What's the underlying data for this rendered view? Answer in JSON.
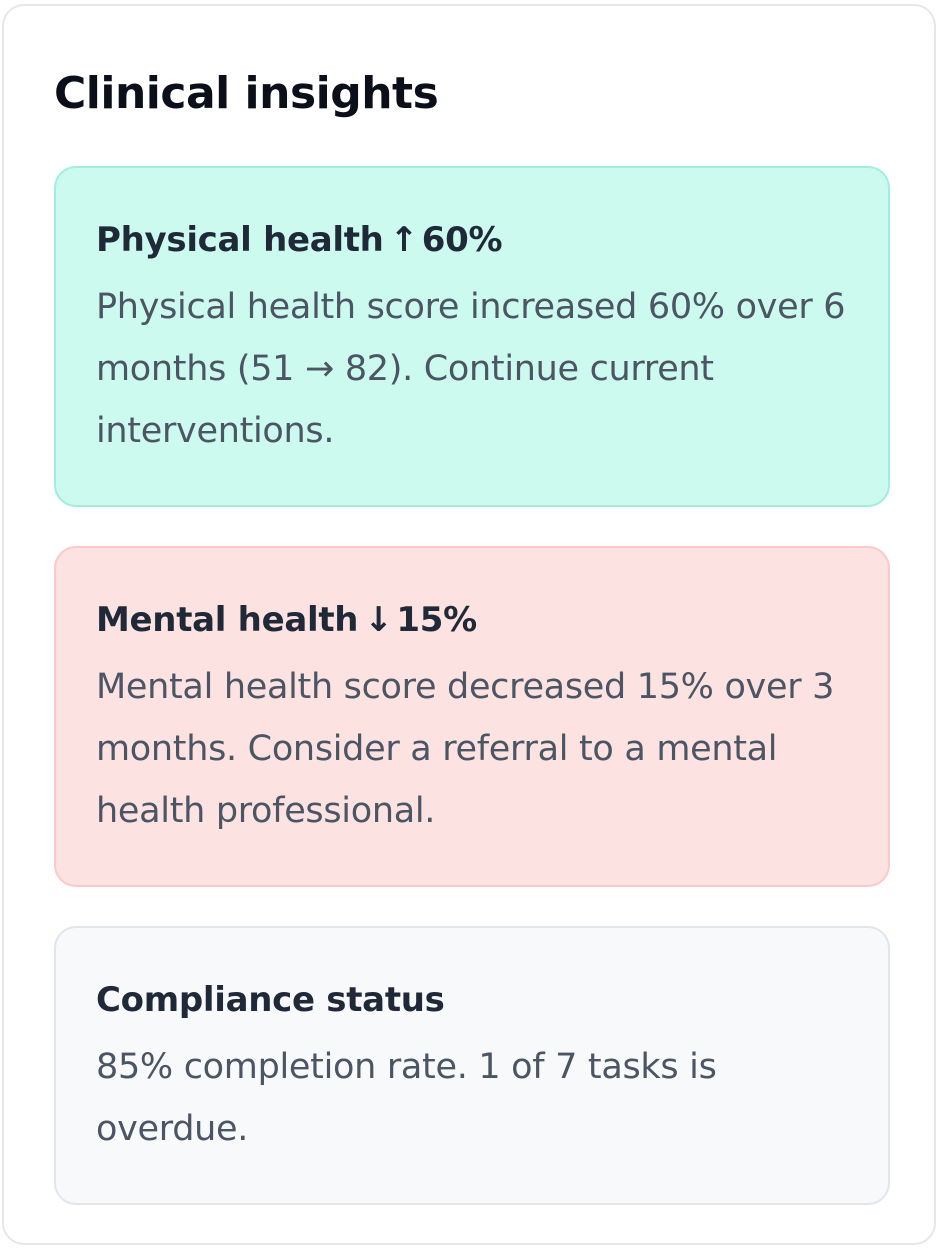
{
  "panel": {
    "title": "Clinical insights"
  },
  "insights": [
    {
      "id": "physical",
      "label": "Physical health",
      "arrow": "↑",
      "change": "60%",
      "description": "Physical health score increased 60% over 6 months (51 → 82). Continue current interventions.",
      "tone": "positive",
      "background": "#ccfaef",
      "border": "#9eefdc"
    },
    {
      "id": "mental",
      "label": "Mental health",
      "arrow": "↓",
      "change": "15%",
      "description": "Mental health score decreased 15% over 3 months. Consider a referral to a mental health professional.",
      "tone": "negative",
      "background": "#fde2e2",
      "border": "#fbc9c7"
    },
    {
      "id": "compliance",
      "label": "Compliance status",
      "description": "85% completion rate. 1 of 7 tasks is overdue.",
      "tone": "neutral",
      "background": "#f8f9fb",
      "border": "#e2e5ea"
    }
  ],
  "icons": {
    "up": "arrow-up-icon",
    "down": "arrow-down-icon"
  }
}
